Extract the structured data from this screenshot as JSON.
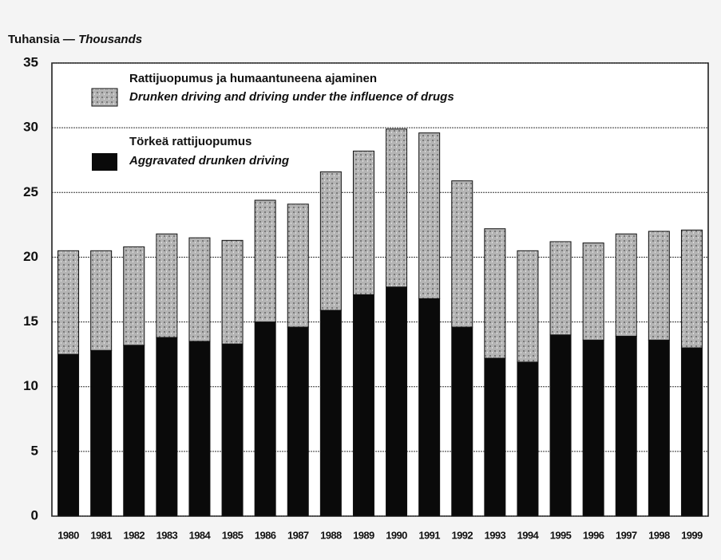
{
  "chart_data": {
    "type": "stacked_bar",
    "ylabel_fi": "Tuhansia —",
    "ylabel_en": "Thousands",
    "categories": [
      "1980",
      "1981",
      "1982",
      "1983",
      "1984",
      "1985",
      "1986",
      "1987",
      "1988",
      "1989",
      "1990",
      "1991",
      "1992",
      "1993",
      "1994",
      "1995",
      "1996",
      "1997",
      "1998",
      "1999"
    ],
    "series": [
      {
        "name": "Törkeä rattijuopumus",
        "name_en": "Aggravated drunken driving",
        "color": "#0a0a0a",
        "values": [
          12.5,
          12.8,
          13.2,
          13.8,
          13.5,
          13.3,
          15.0,
          14.6,
          15.9,
          17.1,
          17.7,
          16.8,
          14.6,
          12.2,
          11.9,
          14.0,
          13.6,
          13.9,
          13.6,
          13.0
        ]
      },
      {
        "name": "Rattijuopumus ja humaantuneena ajaminen",
        "name_en": "Drunken driving and driving under the influence of drugs",
        "color": "#a8a8a8",
        "values": [
          8.0,
          7.7,
          7.6,
          8.0,
          8.0,
          8.0,
          9.4,
          9.5,
          10.7,
          11.1,
          12.2,
          12.8,
          11.3,
          10.0,
          8.6,
          7.2,
          7.5,
          7.9,
          8.4,
          9.1
        ]
      }
    ],
    "ylim": [
      0,
      35
    ],
    "yticks": [
      0,
      5,
      10,
      15,
      20,
      25,
      30,
      35
    ],
    "grid": true
  }
}
